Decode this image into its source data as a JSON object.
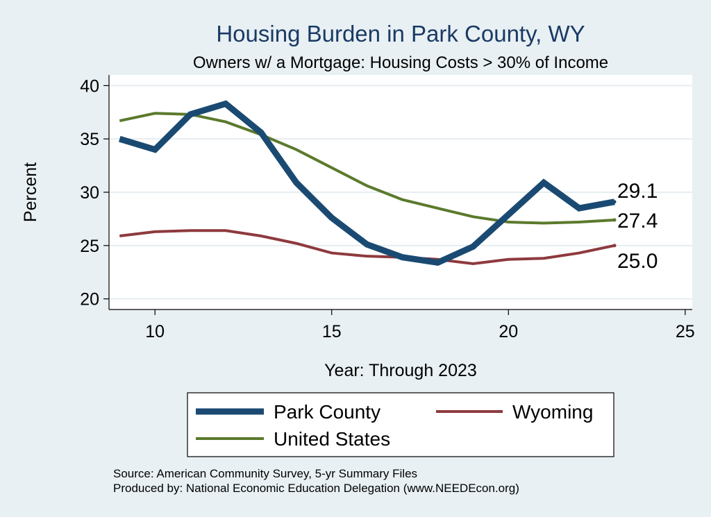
{
  "chart_data": {
    "type": "line",
    "title": "Housing Burden in Park County, WY",
    "subtitle": "Owners w/ a Mortgage: Housing Costs > 30% of Income",
    "xlabel": "Year: Through 2023",
    "ylabel": "Percent",
    "xlim": [
      8.7,
      25.2
    ],
    "ylim": [
      19,
      41
    ],
    "xticks": [
      10,
      15,
      20,
      25
    ],
    "yticks": [
      20,
      25,
      30,
      35,
      40
    ],
    "grid": true,
    "x": [
      9,
      10,
      11,
      12,
      13,
      14,
      15,
      16,
      17,
      18,
      19,
      20,
      21,
      22,
      23
    ],
    "series": [
      {
        "name": "Park County",
        "color": "#1a4a72",
        "width": 9,
        "values": [
          35.0,
          34.0,
          37.3,
          38.3,
          35.6,
          30.9,
          27.6,
          25.1,
          23.9,
          23.4,
          24.9,
          27.9,
          30.9,
          28.5,
          29.1
        ],
        "end_label": "29.1"
      },
      {
        "name": "United States",
        "color": "#5b7a2d",
        "width": 4,
        "values": [
          36.7,
          37.4,
          37.3,
          36.6,
          35.4,
          34.0,
          32.3,
          30.6,
          29.3,
          28.5,
          27.7,
          27.2,
          27.1,
          27.2,
          27.4
        ],
        "end_label": "27.4"
      },
      {
        "name": "Wyoming",
        "color": "#8e3a3e",
        "width": 4,
        "values": [
          25.9,
          26.3,
          26.4,
          26.4,
          25.9,
          25.2,
          24.3,
          24.0,
          23.9,
          23.7,
          23.3,
          23.7,
          23.8,
          24.3,
          25.0
        ],
        "end_label": "25.0"
      }
    ],
    "legend": {
      "placement": "bottom",
      "entries": [
        "Park County",
        "Wyoming",
        "United States"
      ]
    }
  },
  "source_line": "Source: American Community Survey, 5-yr Summary Files",
  "produced_line": "Produced by: National Economic Education Delegation (www.NEEDEcon.org)"
}
